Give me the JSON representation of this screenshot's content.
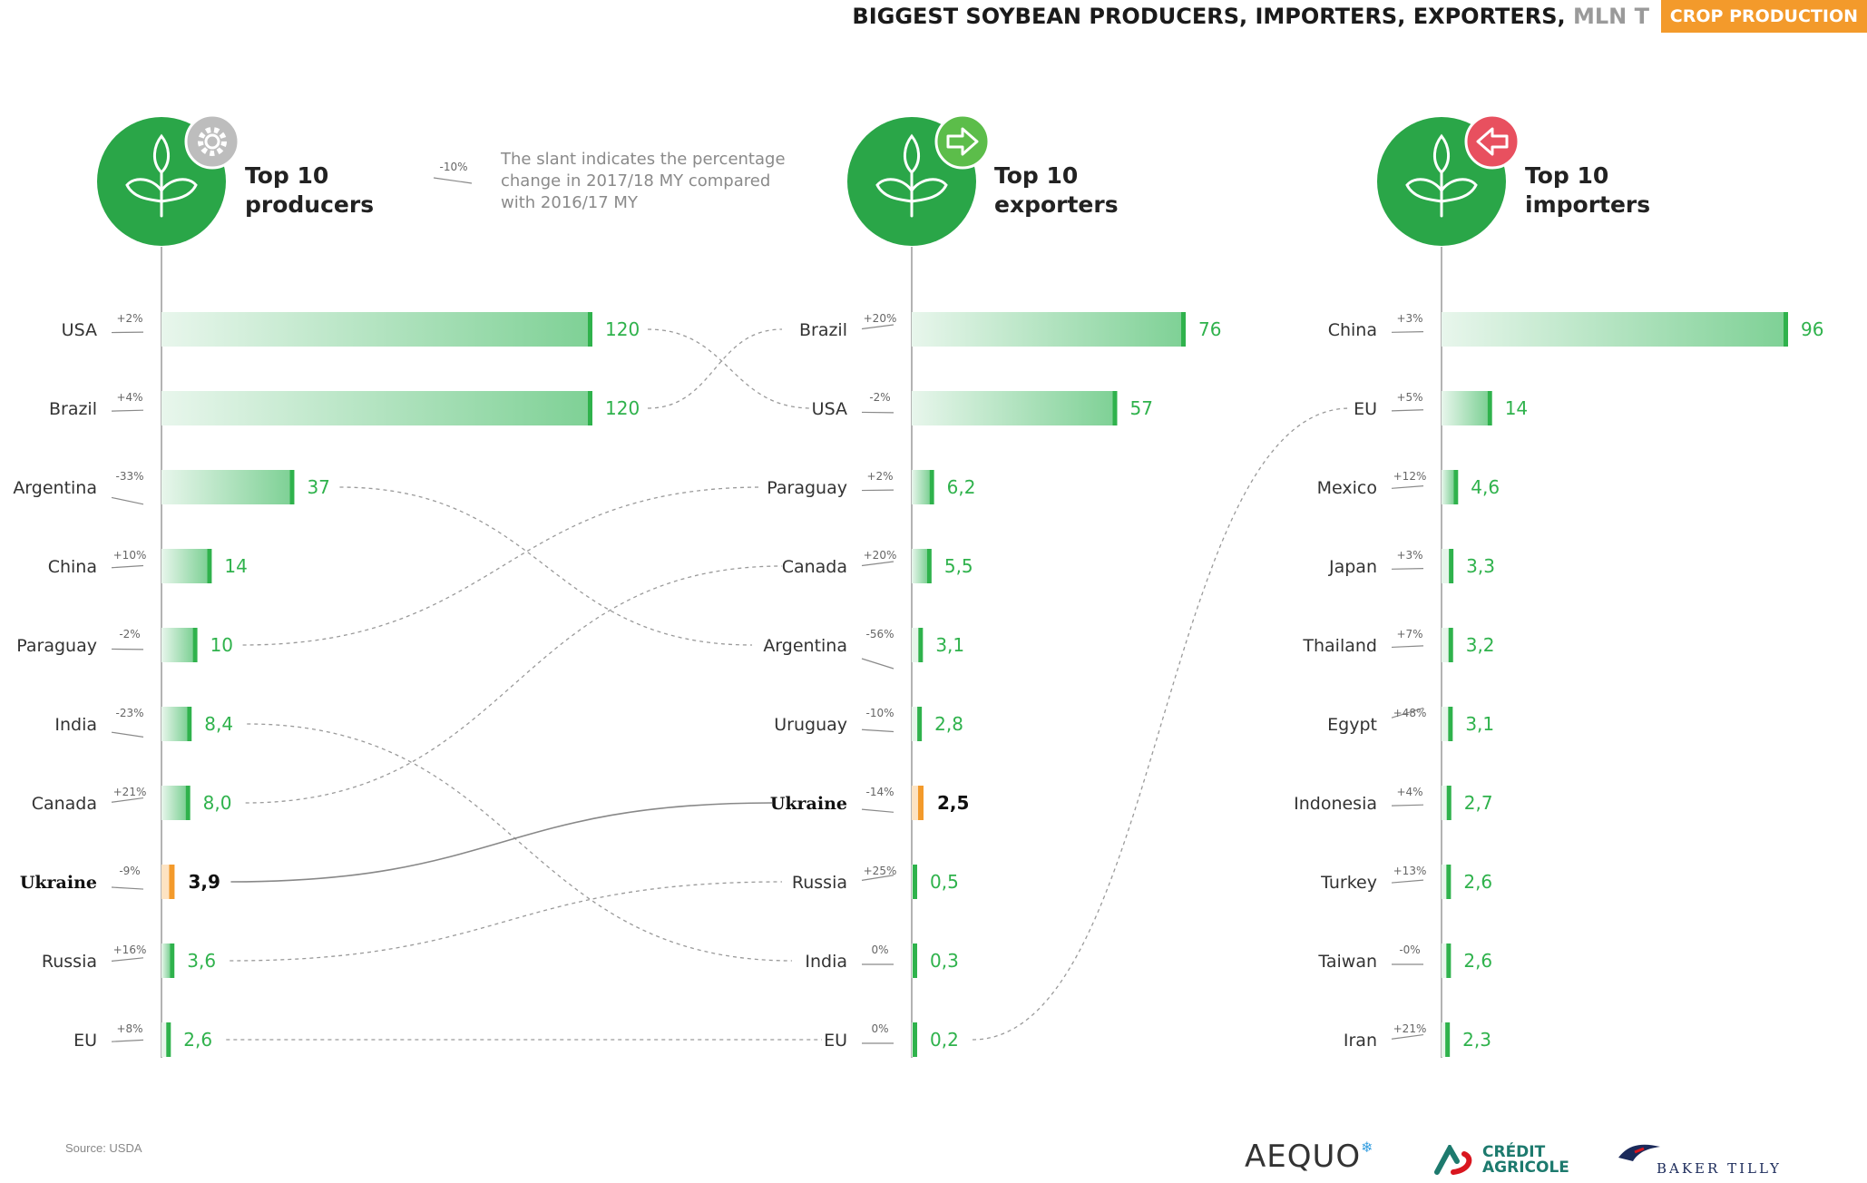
{
  "header": {
    "title": "BIGGEST SOYBEAN PRODUCERS, IMPORTERS, EXPORTERS,",
    "unit": "MLN T",
    "section_badge": "CROP PRODUCTION"
  },
  "legend": {
    "sample_change": "-10%",
    "text": "The slant indicates the percentage change in 2017/18 MY compared with 2016/17 MY"
  },
  "source": "Source: USDA",
  "logos": {
    "aequo": "AEQUO",
    "credit_agricole_line1": "CRÉDIT",
    "credit_agricole_line2": "AGRICOLE",
    "baker_tilly": "BAKER TILLY"
  },
  "colors": {
    "green": "#2fb24c",
    "green_light": "#7fd196",
    "highlight": "#f39a2b",
    "circle": "#2aa648",
    "badge_producers": "#bdbdbd",
    "badge_exporters": "#5cbd4a",
    "badge_importers": "#e8505f"
  },
  "icons": {
    "producers_badge": "gear-icon",
    "exporters_badge": "arrow-right-icon",
    "importers_badge": "arrow-left-icon",
    "panel_icon": "sprout-icon"
  },
  "chart_data": [
    {
      "type": "bar",
      "title": "Top 10 producers",
      "categories": [
        "USA",
        "Brazil",
        "Argentina",
        "China",
        "Paraguay",
        "India",
        "Canada",
        "Ukraine",
        "Russia",
        "EU"
      ],
      "values": [
        120,
        120,
        37,
        14,
        10,
        8.4,
        8.0,
        3.9,
        3.6,
        2.6
      ],
      "labels": [
        "120",
        "120",
        "37",
        "14",
        "10",
        "8,4",
        "8,0",
        "3,9",
        "3,6",
        "2,6"
      ],
      "changes": [
        "+2%",
        "+4%",
        "-33%",
        "+10%",
        "-2%",
        "-23%",
        "+21%",
        "-9%",
        "+16%",
        "+8%"
      ],
      "change_values": [
        2,
        4,
        -33,
        10,
        -2,
        -23,
        21,
        -9,
        16,
        8
      ],
      "highlight": "Ukraine"
    },
    {
      "type": "bar",
      "title": "Top 10 exporters",
      "categories": [
        "Brazil",
        "USA",
        "Paraguay",
        "Canada",
        "Argentina",
        "Uruguay",
        "Ukraine",
        "Russia",
        "India",
        "EU"
      ],
      "values": [
        76,
        57,
        6.2,
        5.5,
        3.1,
        2.8,
        2.5,
        0.5,
        0.3,
        0.2
      ],
      "labels": [
        "76",
        "57",
        "6,2",
        "5,5",
        "3,1",
        "2,8",
        "2,5",
        "0,5",
        "0,3",
        "0,2"
      ],
      "changes": [
        "+20%",
        "-2%",
        "+2%",
        "+20%",
        "-56%",
        "-10%",
        "-14%",
        "+25%",
        "0%",
        "0%"
      ],
      "change_values": [
        20,
        -2,
        2,
        20,
        -56,
        -10,
        -14,
        25,
        0,
        0
      ],
      "highlight": "Ukraine"
    },
    {
      "type": "bar",
      "title": "Top 10 importers",
      "categories": [
        "China",
        "EU",
        "Mexico",
        "Japan",
        "Thailand",
        "Egypt",
        "Indonesia",
        "Turkey",
        "Taiwan",
        "Iran"
      ],
      "values": [
        96,
        14,
        4.6,
        3.3,
        3.2,
        3.1,
        2.7,
        2.6,
        2.6,
        2.3
      ],
      "labels": [
        "96",
        "14",
        "4,6",
        "3,3",
        "3,2",
        "3,1",
        "2,7",
        "2,6",
        "2,6",
        "2,3"
      ],
      "changes": [
        "+3%",
        "+5%",
        "+12%",
        "+3%",
        "+7%",
        "+48%",
        "+4%",
        "+13%",
        "-0%",
        "+21%"
      ],
      "change_values": [
        3,
        5,
        12,
        3,
        7,
        48,
        4,
        13,
        0,
        21
      ],
      "highlight": ""
    }
  ]
}
